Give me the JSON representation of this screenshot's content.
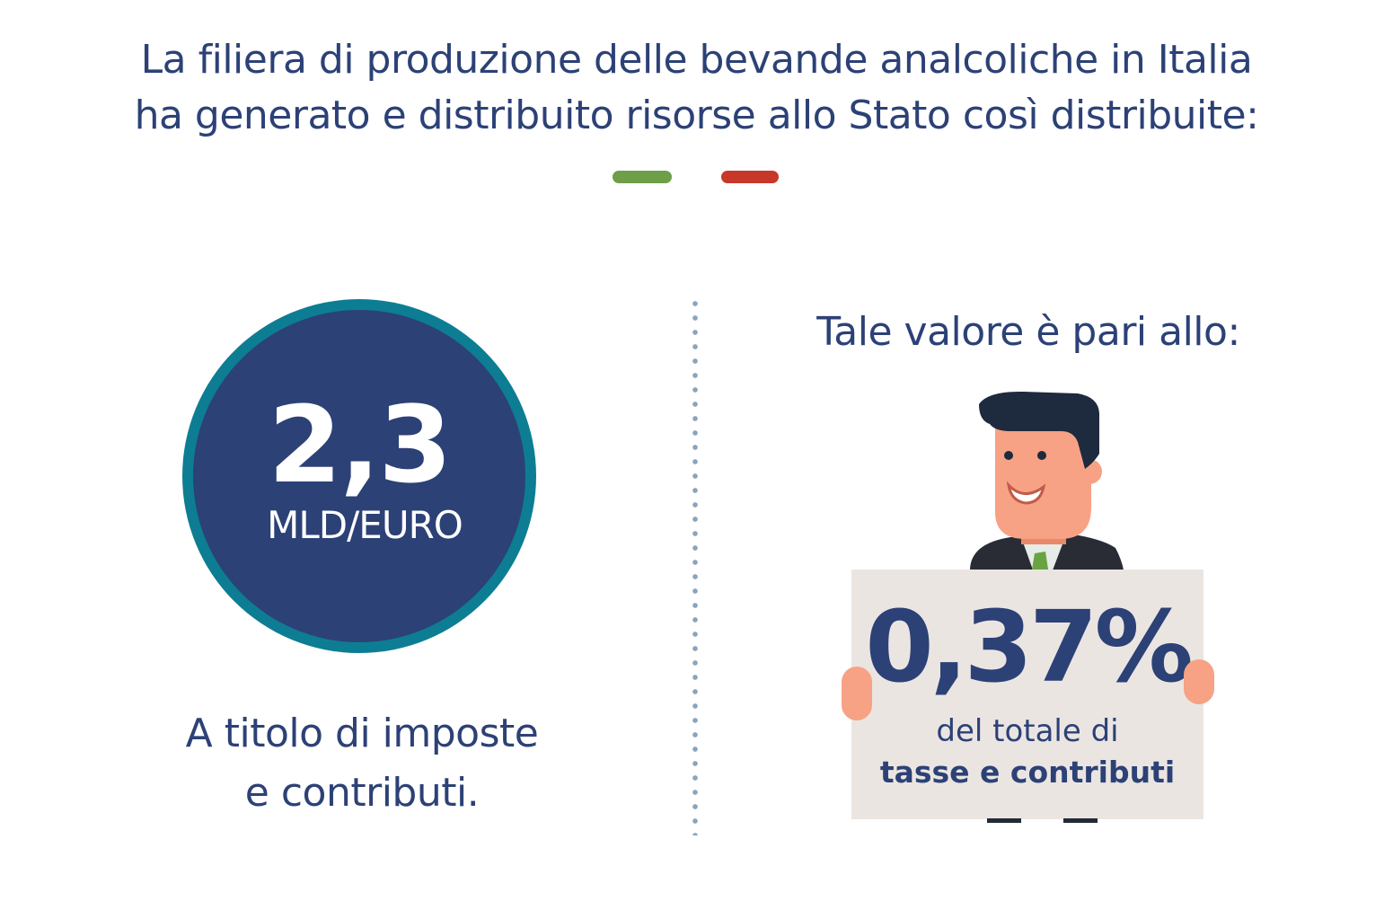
{
  "header": {
    "title_line1": "La filiera di produzione delle bevande analcoliche in Italia",
    "title_line2": "ha generato e distribuito risorse allo Stato così distribuite:",
    "accent_colors": {
      "green": "#6e9e47",
      "red": "#c8382a",
      "navy": "#2c4176",
      "teal": "#0d7d93"
    }
  },
  "left_panel": {
    "value": "2,3",
    "unit": "MLD/EURO",
    "caption_line1": "A titolo di imposte",
    "caption_line2": "e contributi."
  },
  "right_panel": {
    "heading": "Tale valore è pari allo:",
    "illustration": "businessman-holding-sign-icon",
    "sign": {
      "value": "0,37%",
      "line1": "del totale di",
      "line2": "tasse e contributi"
    }
  }
}
